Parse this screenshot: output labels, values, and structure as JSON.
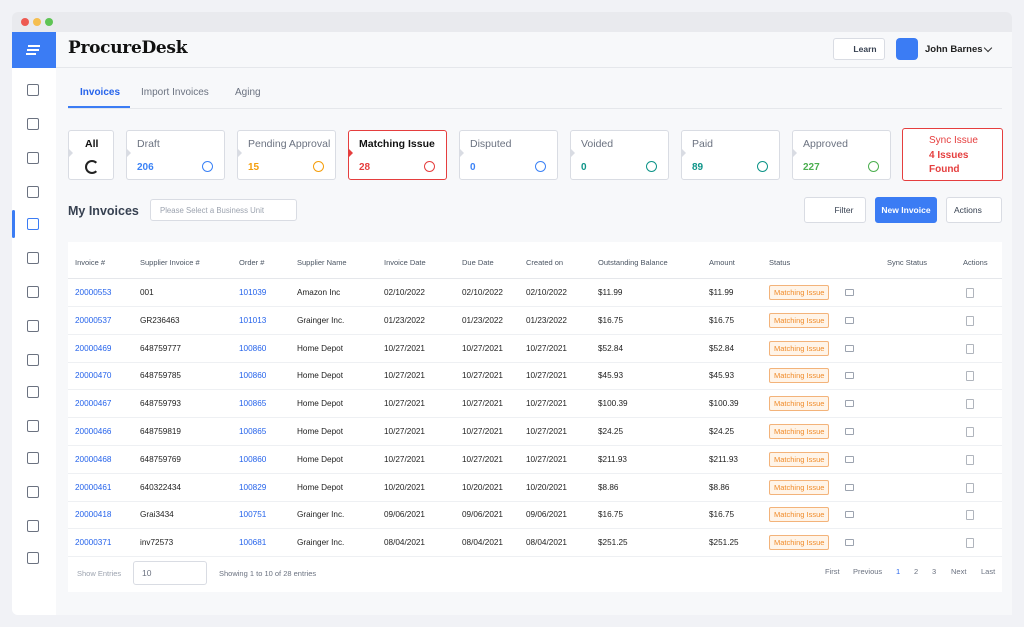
{
  "header": {
    "logo": "ProcureDesk",
    "learn": "Learn",
    "user": "John Barnes"
  },
  "tabs": [
    "Invoices",
    "Import Invoices",
    "Aging"
  ],
  "status_cards": [
    {
      "label": "All"
    },
    {
      "label": "Draft",
      "count": "206",
      "color": "#3b82f6"
    },
    {
      "label": "Pending Approval",
      "count": "15",
      "color": "#f59e0b"
    },
    {
      "label": "Matching Issue",
      "count": "28",
      "color": "#e53e3e"
    },
    {
      "label": "Disputed",
      "count": "0",
      "color": "#3b82f6"
    },
    {
      "label": "Voided",
      "count": "0",
      "color": "#0d9488"
    },
    {
      "label": "Paid",
      "count": "89",
      "color": "#0d9488"
    },
    {
      "label": "Approved",
      "count": "227",
      "color": "#4caf50"
    }
  ],
  "sync_card": {
    "label": "Sync Issue",
    "message": "4 Issues Found"
  },
  "toolbar": {
    "title": "My Invoices",
    "business_unit_placeholder": "Please Select a Business Unit",
    "filter": "Filter",
    "new_invoice": "New Invoice",
    "actions": "Actions"
  },
  "table": {
    "columns": [
      "Invoice #",
      "Supplier Invoice #",
      "Order #",
      "Supplier Name",
      "Invoice Date",
      "Due Date",
      "Created on",
      "Outstanding Balance",
      "Amount",
      "Status",
      "Sync Status",
      "Actions"
    ],
    "rows": [
      [
        "20000553",
        "001",
        "101039",
        "Amazon Inc",
        "02/10/2022",
        "02/10/2022",
        "02/10/2022",
        "$11.99",
        "$11.99",
        "Matching Issue"
      ],
      [
        "20000537",
        "GR236463",
        "101013",
        "Grainger Inc.",
        "01/23/2022",
        "01/23/2022",
        "01/23/2022",
        "$16.75",
        "$16.75",
        "Matching Issue"
      ],
      [
        "20000469",
        "648759777",
        "100860",
        "Home Depot",
        "10/27/2021",
        "10/27/2021",
        "10/27/2021",
        "$52.84",
        "$52.84",
        "Matching Issue"
      ],
      [
        "20000470",
        "648759785",
        "100860",
        "Home Depot",
        "10/27/2021",
        "10/27/2021",
        "10/27/2021",
        "$45.93",
        "$45.93",
        "Matching Issue"
      ],
      [
        "20000467",
        "648759793",
        "100865",
        "Home Depot",
        "10/27/2021",
        "10/27/2021",
        "10/27/2021",
        "$100.39",
        "$100.39",
        "Matching Issue"
      ],
      [
        "20000466",
        "648759819",
        "100865",
        "Home Depot",
        "10/27/2021",
        "10/27/2021",
        "10/27/2021",
        "$24.25",
        "$24.25",
        "Matching Issue"
      ],
      [
        "20000468",
        "648759769",
        "100860",
        "Home Depot",
        "10/27/2021",
        "10/27/2021",
        "10/27/2021",
        "$211.93",
        "$211.93",
        "Matching Issue"
      ],
      [
        "20000461",
        "640322434",
        "100829",
        "Home Depot",
        "10/20/2021",
        "10/20/2021",
        "10/20/2021",
        "$8.86",
        "$8.86",
        "Matching Issue"
      ],
      [
        "20000418",
        "Grai3434",
        "100751",
        "Grainger Inc.",
        "09/06/2021",
        "09/06/2021",
        "09/06/2021",
        "$16.75",
        "$16.75",
        "Matching Issue"
      ],
      [
        "20000371",
        "inv72573",
        "100681",
        "Grainger Inc.",
        "08/04/2021",
        "08/04/2021",
        "08/04/2021",
        "$251.25",
        "$251.25",
        "Matching Issue"
      ]
    ]
  },
  "footer": {
    "show_entries": "Show Entries",
    "entries_value": "10",
    "summary": "Showing 1 to 10 of 28 entries",
    "pagination": [
      "First",
      "Previous",
      "1",
      "2",
      "3",
      "Next",
      "Last"
    ]
  }
}
